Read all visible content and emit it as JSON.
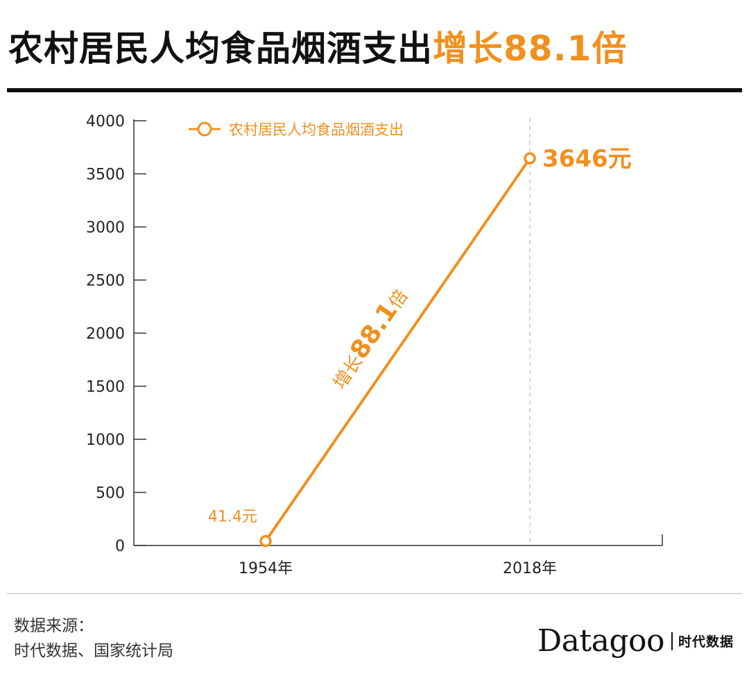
{
  "title": {
    "main": "农村居民人均食品烟酒支出",
    "highlight": "增长88.1倍"
  },
  "colors": {
    "accent": "#F0901E",
    "text": "#111111",
    "axis": "#333333"
  },
  "chart_data": {
    "type": "line",
    "title": "农村居民人均食品烟酒支出增长88.1倍",
    "categories": [
      "1954年",
      "2018年"
    ],
    "series": [
      {
        "name": "农村居民人均食品烟酒支出",
        "values": [
          41.4,
          3646
        ]
      }
    ],
    "data_labels": [
      "41.4元",
      "3646元"
    ],
    "annotation": {
      "prefix": "增长",
      "value": "88.1",
      "suffix": "倍"
    },
    "ylim": [
      0,
      4000
    ],
    "yticks": [
      "0",
      "500",
      "1000",
      "1500",
      "2000",
      "2500",
      "3000",
      "3500",
      "4000"
    ],
    "xlabel": "",
    "ylabel": "",
    "grid": false,
    "legend_position": "top-left"
  },
  "footer": {
    "source_line1": "数据来源：",
    "source_line2": "时代数据、国家统计局",
    "brand_logo": "Datagoo",
    "brand_cn": "时代数据"
  }
}
